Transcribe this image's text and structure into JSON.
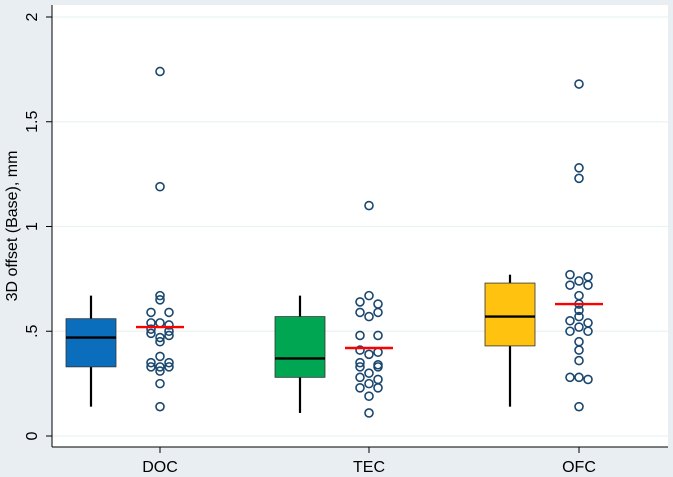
{
  "chart_data": {
    "type": "box",
    "title": "",
    "ylabel": "3D offset (Base), mm",
    "xlabel": "",
    "ylim": [
      0,
      2
    ],
    "yticks": [
      0,
      0.5,
      1,
      1.5,
      2
    ],
    "ytick_labels": [
      "0",
      ".5",
      "1",
      "1.5",
      "2"
    ],
    "grid": true,
    "groups": [
      {
        "name": "DOC",
        "color": "#0a6ebd",
        "box": {
          "whisker_low": 0.14,
          "q1": 0.33,
          "median": 0.47,
          "q3": 0.56,
          "whisker_high": 0.67
        },
        "mean": 0.52,
        "points": [
          1.74,
          1.19,
          0.67,
          0.65,
          0.59,
          0.59,
          0.54,
          0.54,
          0.53,
          0.51,
          0.5,
          0.49,
          0.48,
          0.47,
          0.45,
          0.38,
          0.35,
          0.35,
          0.33,
          0.33,
          0.33,
          0.31,
          0.25,
          0.14
        ]
      },
      {
        "name": "TEC",
        "color": "#00a651",
        "box": {
          "whisker_low": 0.11,
          "q1": 0.28,
          "median": 0.37,
          "q3": 0.57,
          "whisker_high": 0.67
        },
        "mean": 0.42,
        "points": [
          1.1,
          0.67,
          0.64,
          0.63,
          0.59,
          0.59,
          0.57,
          0.48,
          0.48,
          0.41,
          0.4,
          0.39,
          0.35,
          0.34,
          0.33,
          0.33,
          0.3,
          0.28,
          0.27,
          0.25,
          0.23,
          0.23,
          0.19,
          0.11
        ]
      },
      {
        "name": "OFC",
        "color": "#ffc20e",
        "box": {
          "whisker_low": 0.14,
          "q1": 0.43,
          "median": 0.57,
          "q3": 0.73,
          "whisker_high": 0.77
        },
        "mean": 0.63,
        "points": [
          1.68,
          1.28,
          1.23,
          0.77,
          0.76,
          0.74,
          0.72,
          0.72,
          0.67,
          0.63,
          0.6,
          0.57,
          0.55,
          0.54,
          0.52,
          0.5,
          0.5,
          0.45,
          0.41,
          0.36,
          0.28,
          0.28,
          0.27,
          0.14
        ]
      }
    ]
  },
  "style": {
    "background": "#e9eef2",
    "plot_background": "#ffffff",
    "grid_color": "#eaf2f3",
    "axis_color": "#000000",
    "mean_color": "#ff0000",
    "point_color": "#1a476f"
  }
}
